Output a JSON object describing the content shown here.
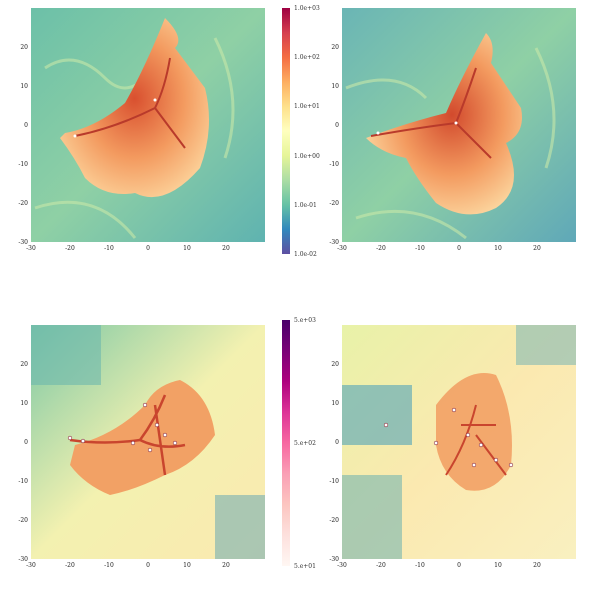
{
  "figure": {
    "xticks": [
      "-30",
      "-20",
      "-10",
      "0",
      "10",
      "20"
    ],
    "yticks": [
      "20",
      "10",
      "0",
      "-10",
      "-20",
      "-30"
    ],
    "colorbar_top": {
      "scale": "log",
      "labels": [
        "1.0e+03",
        "1.0e+02",
        "1.0e+01",
        "1.0e+00",
        "1.0e-01",
        "1.0e-02"
      ],
      "colors": [
        "#9e0142",
        "#d53e4f",
        "#f46d43",
        "#fdae61",
        "#fee08b",
        "#ffffbf",
        "#e6f598",
        "#abdda4",
        "#66c2a5",
        "#3288bd",
        "#5e4fa2"
      ]
    },
    "colorbar_bottom": {
      "scale": "log",
      "labels": [
        "5.e+03",
        "5.e+02",
        "5.e+01"
      ],
      "colors": [
        "#49006a",
        "#7a0177",
        "#ae017e",
        "#dd3497",
        "#f768a1",
        "#fa9fb5",
        "#fcc5c0",
        "#fde0dd",
        "#fff7f3"
      ]
    }
  }
}
